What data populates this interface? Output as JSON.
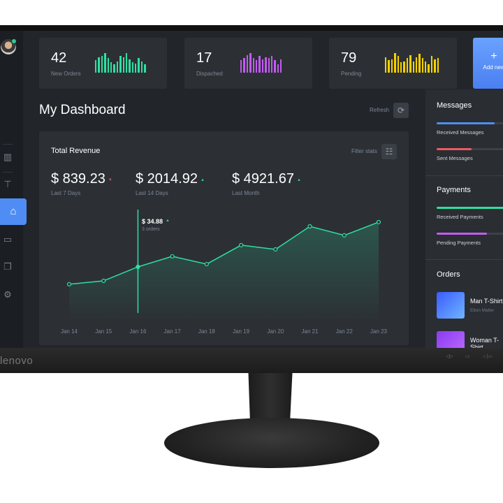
{
  "monitor": {
    "brand": "lenovo"
  },
  "sidebar": {
    "items": [
      {
        "icon": "bar-chart-icon"
      },
      {
        "icon": "signpost-icon"
      },
      {
        "icon": "basket-icon",
        "active": true
      },
      {
        "icon": "chat-icon"
      },
      {
        "icon": "documents-icon"
      },
      {
        "icon": "gear-icon"
      }
    ]
  },
  "stats": [
    {
      "value": "42",
      "label": "New Orders",
      "color": "#2ee0a0",
      "bars": [
        60,
        75,
        80,
        95,
        70,
        50,
        40,
        55,
        80,
        75,
        95,
        65,
        50,
        45,
        70,
        55,
        40
      ]
    },
    {
      "value": "17",
      "label": "Dispached",
      "color": "#c05cf0",
      "bars": [
        60,
        70,
        85,
        95,
        70,
        60,
        80,
        65,
        75,
        70,
        80,
        60,
        40,
        65
      ]
    },
    {
      "value": "79",
      "label": "Pending",
      "color": "#f5d000",
      "bars": [
        75,
        60,
        65,
        95,
        80,
        50,
        55,
        70,
        85,
        55,
        75,
        90,
        70,
        55,
        40,
        80,
        65,
        70
      ]
    }
  ],
  "add_button": {
    "icon": "+",
    "label": "Add new"
  },
  "page_title": "My Dashboard",
  "refresh_label": "Refresh",
  "revenue": {
    "title": "Total Revenue",
    "filter_label": "Filter stats",
    "kpis": [
      {
        "value": "$ 839.23",
        "label": "Last 7 Days",
        "trend": "down"
      },
      {
        "value": "$ 2014.92",
        "label": "Last 14 Days",
        "trend": "up"
      },
      {
        "value": "$ 4921.67",
        "label": "Last Month",
        "trend": "up"
      }
    ],
    "tooltip": {
      "value": "$ 34.88",
      "sub": "3 orders"
    }
  },
  "chart_data": {
    "type": "area",
    "categories": [
      "Jan 14",
      "Jan 15",
      "Jan 16",
      "Jan 17",
      "Jan 18",
      "Jan 19",
      "Jan 20",
      "Jan 21",
      "Jan 22",
      "Jan 23"
    ],
    "values": [
      22.1,
      24.6,
      34.88,
      42.6,
      36.9,
      50.8,
      47.7,
      64.6,
      58.0,
      67.7
    ],
    "highlight": "Jan 16",
    "color": "#2ee0a0",
    "grid": false
  },
  "messages": {
    "title": "Messages",
    "items": [
      {
        "label": "Received Messages",
        "progress": 0.75,
        "color": "#4f8df5"
      },
      {
        "label": "Sent Messages",
        "progress": 0.45,
        "color": "#f05a64"
      }
    ]
  },
  "payments": {
    "title": "Payments",
    "items": [
      {
        "label": "Received Payments",
        "progress": 1.0,
        "color": "#2ee0a0"
      },
      {
        "label": "Pending Payments",
        "progress": 0.65,
        "color": "#c05cf0"
      }
    ]
  },
  "orders": {
    "title": "Orders",
    "items": [
      {
        "name": "Man T-Shirt",
        "customer": "Elton Maller"
      },
      {
        "name": "Woman T-Shirt",
        "customer": ""
      }
    ]
  }
}
